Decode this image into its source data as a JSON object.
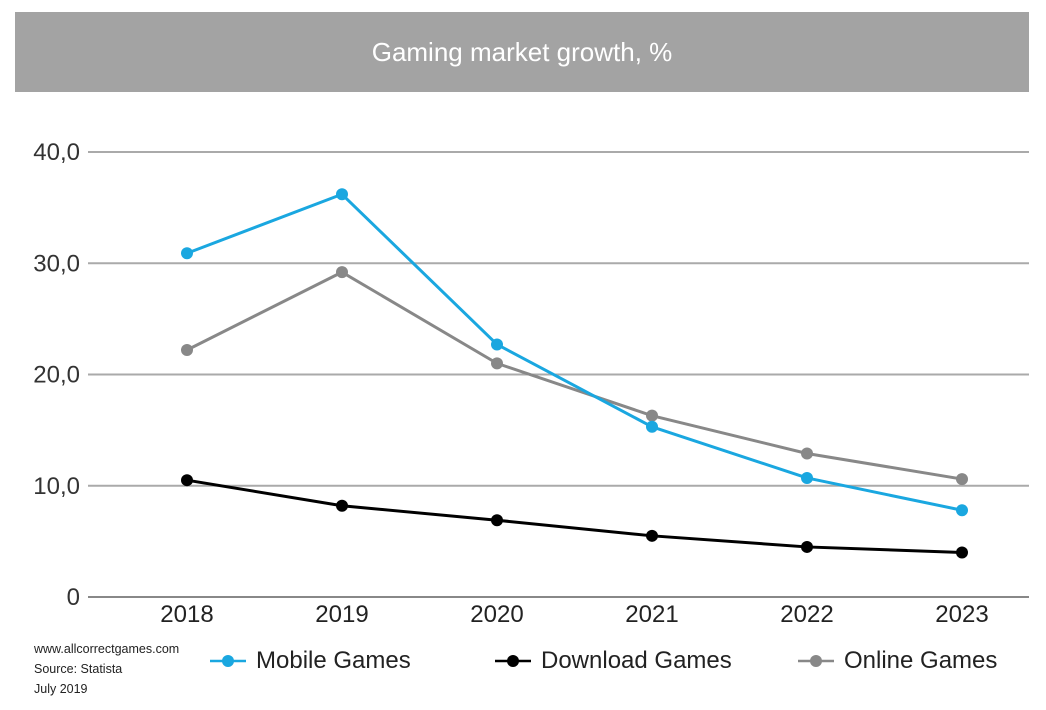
{
  "header": {
    "title": "Gaming market growth, %"
  },
  "source": {
    "website": "www.allcorrectgames.com",
    "source": "Source: Statista",
    "date": "July 2019"
  },
  "colors": {
    "title_bar": "#a3a3a3",
    "grid": "#aaaaaa",
    "mobile": "#1aa7e0",
    "download": "#000000",
    "online": "#888888"
  },
  "chart_data": {
    "type": "line",
    "title": "Gaming market growth, %",
    "categories": [
      "2018",
      "2019",
      "2020",
      "2021",
      "2022",
      "2023"
    ],
    "y_ticks": [
      "0",
      "10,0",
      "20,0",
      "30,0",
      "40,0"
    ],
    "ylim": [
      0,
      40
    ],
    "grid": true,
    "legend_position": "bottom",
    "series": [
      {
        "name": "Mobile Games",
        "color": "#1aa7e0",
        "values": [
          30.9,
          36.2,
          22.7,
          15.3,
          10.7,
          7.8
        ]
      },
      {
        "name": "Download Games",
        "color": "#000000",
        "values": [
          10.5,
          8.2,
          6.9,
          5.5,
          4.5,
          4.0
        ]
      },
      {
        "name": "Online Games",
        "color": "#888888",
        "values": [
          22.2,
          29.2,
          21.0,
          16.3,
          12.9,
          10.6
        ]
      }
    ]
  }
}
